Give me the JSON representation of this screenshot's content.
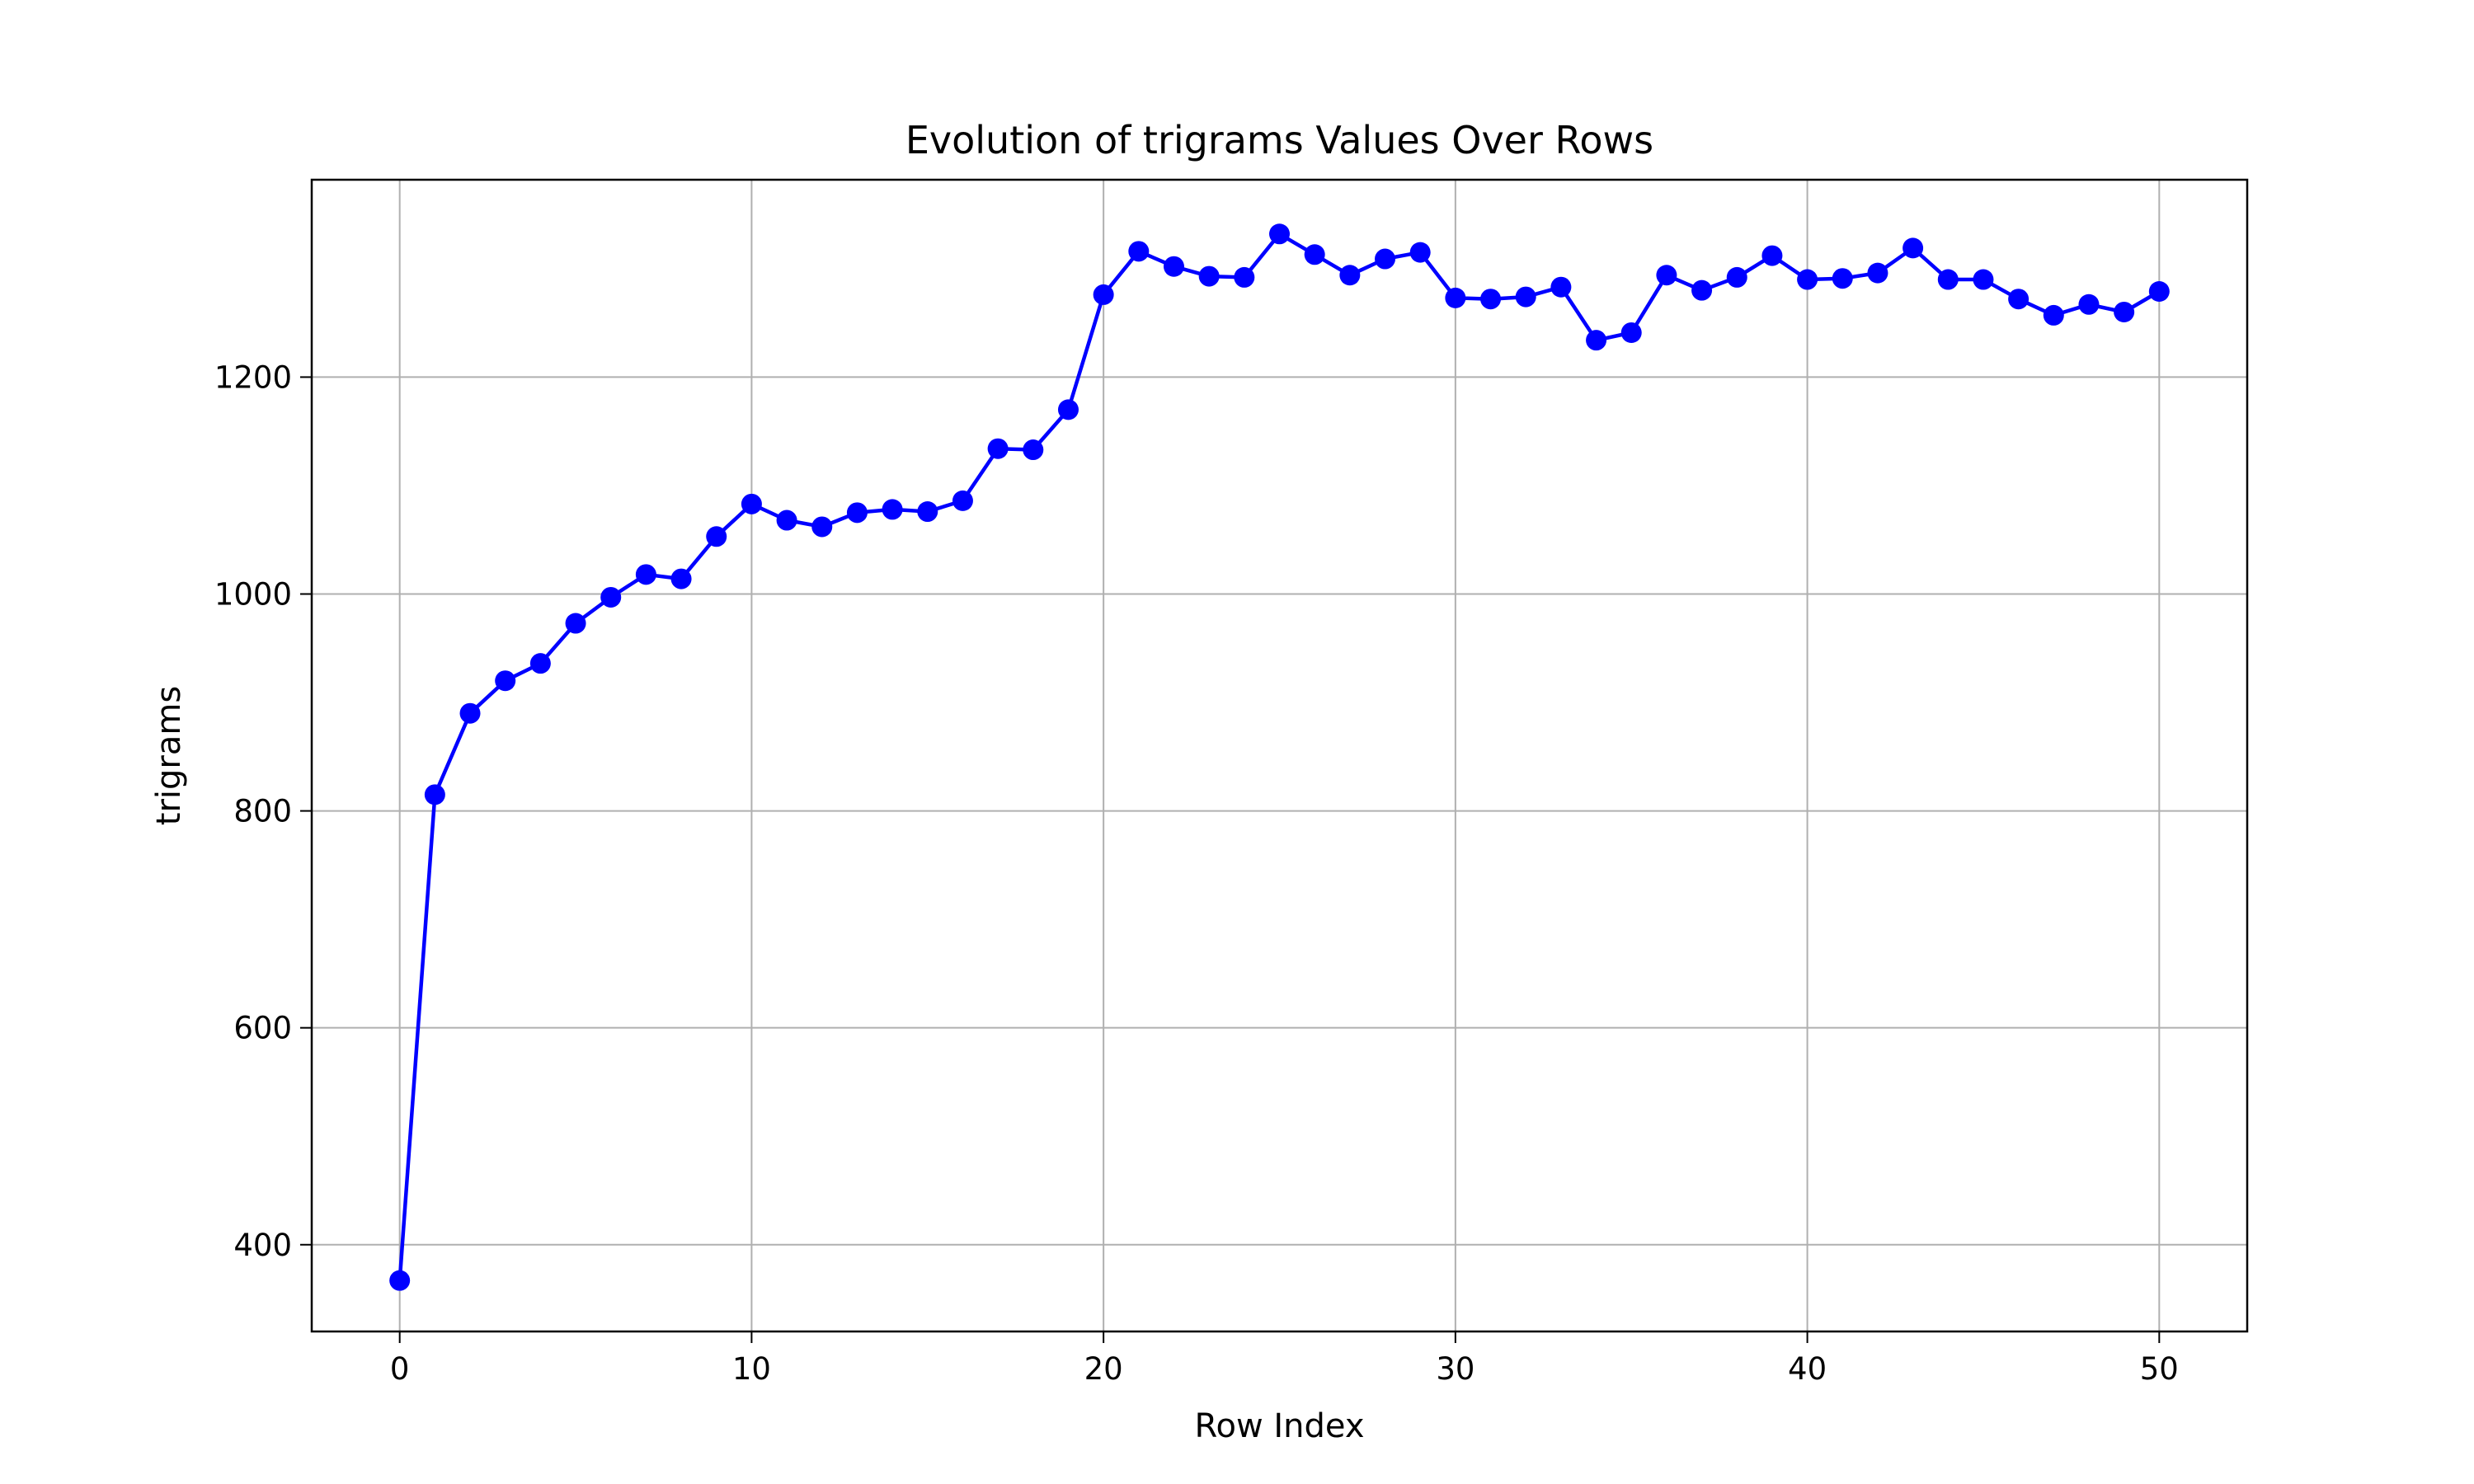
{
  "chart_data": {
    "type": "line",
    "title": "Evolution of trigrams Values Over Rows",
    "xlabel": "Row Index",
    "ylabel": "trigrams",
    "xlim": [
      -2.5,
      52.5
    ],
    "ylim": [
      320,
      1382
    ],
    "xticks": [
      0,
      10,
      20,
      30,
      40,
      50
    ],
    "yticks": [
      400,
      600,
      800,
      1000,
      1200
    ],
    "grid": true,
    "marker": "circle",
    "line_color": "#0000ff",
    "series": [
      {
        "x": [
          0,
          1,
          2,
          3,
          4,
          5,
          6,
          7,
          8,
          9,
          10,
          11,
          12,
          13,
          14,
          15,
          16,
          17,
          18,
          19,
          20,
          21,
          22,
          23,
          24,
          25,
          26,
          27,
          28,
          29,
          30,
          31,
          32,
          33,
          34,
          35,
          36,
          37,
          38,
          39,
          40,
          41,
          42,
          43,
          44,
          45,
          46,
          47,
          48,
          49,
          50
        ],
        "values": [
          367,
          815,
          890,
          920,
          936,
          973,
          997,
          1018,
          1014,
          1053,
          1083,
          1068,
          1062,
          1075,
          1078,
          1076,
          1086,
          1134,
          1133,
          1170,
          1276,
          1316,
          1302,
          1293,
          1292,
          1332,
          1313,
          1294,
          1309,
          1315,
          1273,
          1272,
          1274,
          1283,
          1234,
          1241,
          1294,
          1280,
          1292,
          1312,
          1290,
          1291,
          1296,
          1319,
          1290,
          1290,
          1272,
          1257,
          1267,
          1260,
          1279
        ]
      }
    ]
  }
}
